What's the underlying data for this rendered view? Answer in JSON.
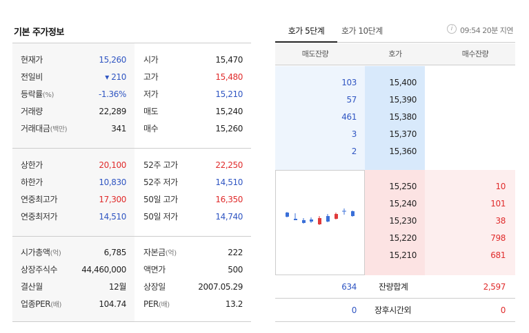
{
  "basic": {
    "title": "기본 주가정보",
    "sec1": [
      {
        "l1": "현재가",
        "l1s": "",
        "v1": "15,260",
        "c1": "blue",
        "l2": "시가",
        "l2s": "",
        "v2": "15,470",
        "c2": "dark"
      },
      {
        "l1": "전일비",
        "l1s": "",
        "v1": "▾ 210",
        "c1": "blue",
        "l2": "고가",
        "l2s": "",
        "v2": "15,480",
        "c2": "red"
      },
      {
        "l1": "등락률",
        "l1s": "(%)",
        "v1": "-1.36%",
        "c1": "blue",
        "l2": "저가",
        "l2s": "",
        "v2": "15,210",
        "c2": "blue"
      },
      {
        "l1": "거래량",
        "l1s": "",
        "v1": "22,289",
        "c1": "dark",
        "l2": "매도",
        "l2s": "",
        "v2": "15,240",
        "c2": "dark"
      },
      {
        "l1": "거래대금",
        "l1s": "(백만)",
        "v1": "341",
        "c1": "dark",
        "l2": "매수",
        "l2s": "",
        "v2": "15,260",
        "c2": "dark"
      }
    ],
    "sec2": [
      {
        "l1": "상한가",
        "l1s": "",
        "v1": "20,100",
        "c1": "red",
        "l2": "52주 고가",
        "l2s": "",
        "v2": "22,250",
        "c2": "red"
      },
      {
        "l1": "하한가",
        "l1s": "",
        "v1": "10,830",
        "c1": "blue",
        "l2": "52주 저가",
        "l2s": "",
        "v2": "14,510",
        "c2": "blue"
      },
      {
        "l1": "연중최고가",
        "l1s": "",
        "v1": "17,300",
        "c1": "red",
        "l2": "50일 고가",
        "l2s": "",
        "v2": "16,350",
        "c2": "red"
      },
      {
        "l1": "연중최저가",
        "l1s": "",
        "v1": "14,510",
        "c1": "blue",
        "l2": "50일 저가",
        "l2s": "",
        "v2": "14,740",
        "c2": "blue"
      }
    ],
    "sec3": [
      {
        "l1": "시가총액",
        "l1s": "(억)",
        "v1": "6,785",
        "c1": "dark",
        "l2": "자본금",
        "l2s": "(억)",
        "v2": "222",
        "c2": "dark"
      },
      {
        "l1": "상장주식수",
        "l1s": "",
        "v1": "44,460,000",
        "c1": "dark",
        "l2": "액면가",
        "l2s": "",
        "v2": "500",
        "c2": "dark"
      },
      {
        "l1": "결산월",
        "l1s": "",
        "v1": "12월",
        "c1": "dark",
        "l2": "상장일",
        "l2s": "",
        "v2": "2007.05.29",
        "c2": "dark"
      },
      {
        "l1": "업종PER",
        "l1s": "(배)",
        "v1": "104.74",
        "c1": "dark",
        "l2": "PER",
        "l2s": "(배)",
        "v2": "13.2",
        "c2": "dark"
      }
    ]
  },
  "orderbook": {
    "tab_active": "호가 5단계",
    "tab_inactive": "호가 10단계",
    "info_icon": "i",
    "delay_text": "09:54 20분 지연",
    "head_ask_qty": "매도잔량",
    "head_price": "호가",
    "head_bid_qty": "매수잔량",
    "asks": [
      {
        "qty": "103",
        "price": "15,400"
      },
      {
        "qty": "57",
        "price": "15,390"
      },
      {
        "qty": "461",
        "price": "15,380"
      },
      {
        "qty": "3",
        "price": "15,370"
      },
      {
        "qty": "2",
        "price": "15,360"
      }
    ],
    "bids": [
      {
        "price": "15,250",
        "qty": "10"
      },
      {
        "price": "15,240",
        "qty": "101"
      },
      {
        "price": "15,230",
        "qty": "38"
      },
      {
        "price": "15,220",
        "qty": "798"
      },
      {
        "price": "15,210",
        "qty": "681"
      }
    ],
    "total_ask": "634",
    "total_label": "잔량합계",
    "total_bid": "2,597",
    "after_ask": "0",
    "after_label": "장후시간외",
    "after_bid": "0",
    "colors": {
      "blue": "#2f55c2",
      "red": "#e02b2b"
    }
  }
}
